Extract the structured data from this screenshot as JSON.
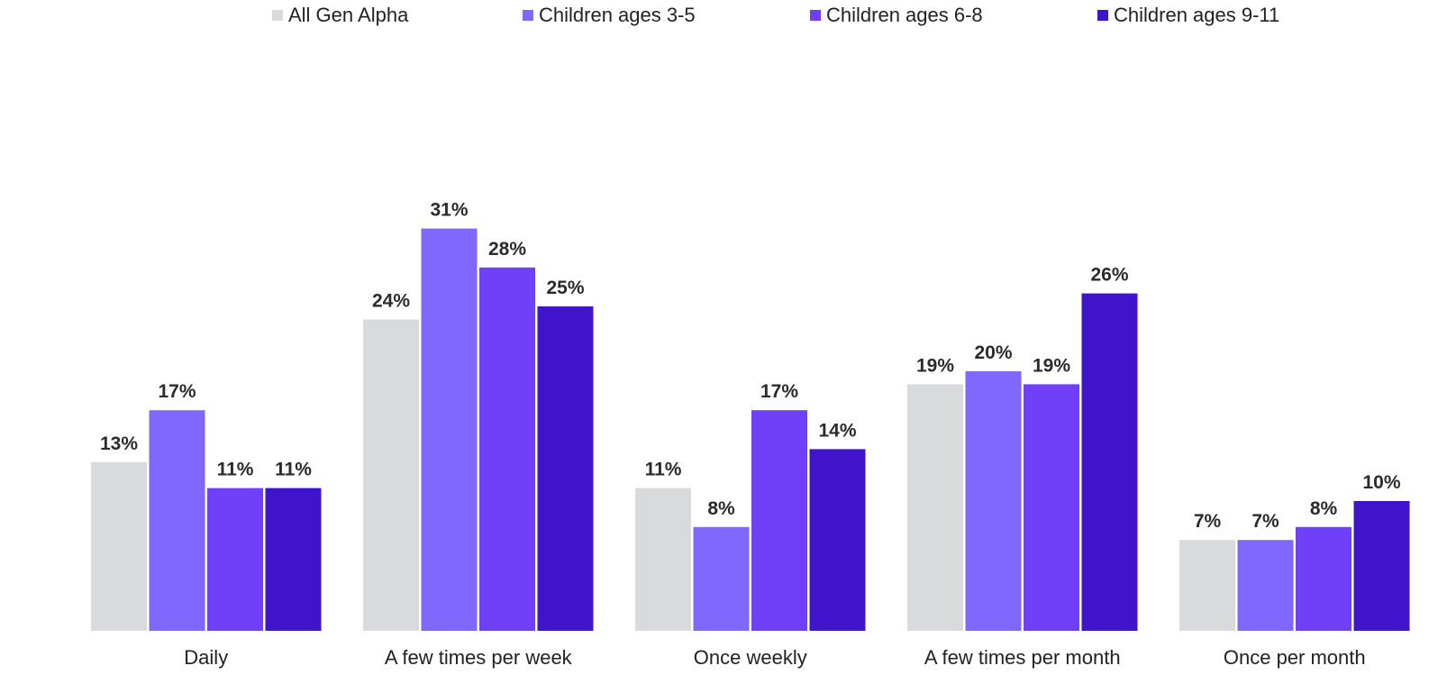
{
  "chart_data": {
    "type": "bar",
    "categories": [
      "Daily",
      "A few times per week",
      "Once weekly",
      "A few times per month",
      "Once per month"
    ],
    "series": [
      {
        "name": "All Gen Alpha",
        "color": "#d9dadb",
        "values": [
          13,
          24,
          11,
          19,
          7
        ]
      },
      {
        "name": "Children ages 3-5",
        "color": "#8068ff",
        "values": [
          17,
          31,
          8,
          20,
          7
        ]
      },
      {
        "name": "Children ages 6-8",
        "color": "#7040f8",
        "values": [
          11,
          28,
          17,
          19,
          8
        ]
      },
      {
        "name": "Children ages 9-11",
        "color": "#4013cc",
        "values": [
          11,
          25,
          14,
          26,
          10
        ]
      }
    ],
    "value_suffix": "%",
    "legend_position": "top",
    "grid": false,
    "ylim": [
      0,
      31
    ]
  }
}
